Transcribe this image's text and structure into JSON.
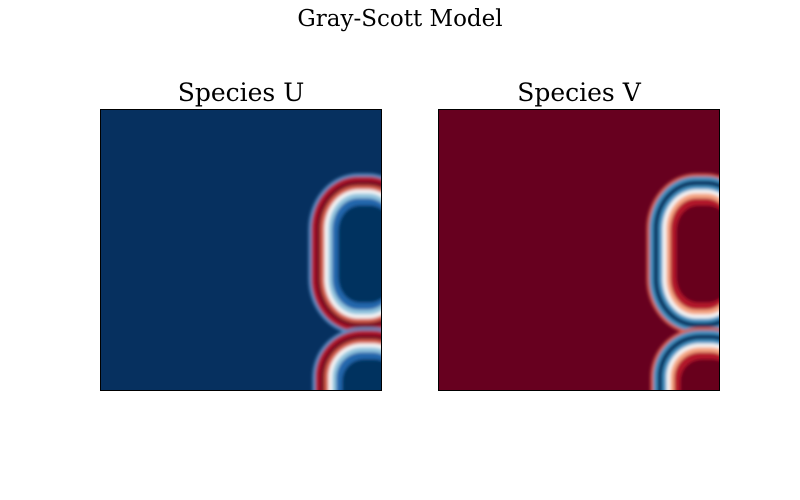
{
  "figure": {
    "title": "Gray-Scott Model"
  },
  "panels": [
    {
      "title": "Species U",
      "base_color": "#06305f",
      "colormap": "RdBu (diverging, red-white-blue)"
    },
    {
      "title": "Species V",
      "base_color": "#67001f",
      "colormap": "RdBu (diverging, red-white-blue)"
    }
  ],
  "colors": {
    "dark_blue": "#053061",
    "blue": "#2166ac",
    "light_blue": "#92c5de",
    "white": "#f7f7f7",
    "light_red": "#f4a582",
    "red": "#b2182b",
    "dark_red": "#67001f"
  }
}
